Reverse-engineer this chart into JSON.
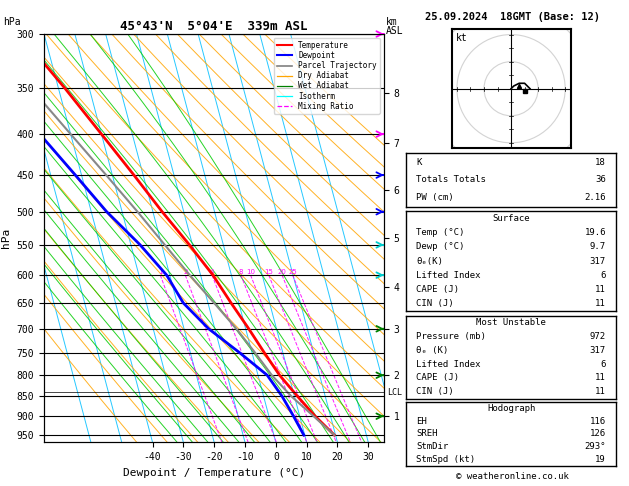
{
  "title_left": "45°43'N  5°04'E  339m ASL",
  "title_right": "25.09.2024  18GMT (Base: 12)",
  "xlabel": "Dewpoint / Temperature (°C)",
  "ylabel_left": "hPa",
  "pressure_ticks": [
    300,
    350,
    400,
    450,
    500,
    550,
    600,
    650,
    700,
    750,
    800,
    850,
    900,
    950
  ],
  "temp_ticks": [
    -40,
    -30,
    -20,
    -10,
    0,
    10,
    20,
    30
  ],
  "km_values": [
    1,
    2,
    3,
    4,
    5,
    6,
    7,
    8
  ],
  "km_pressures": [
    900,
    800,
    700,
    620,
    540,
    470,
    410,
    355
  ],
  "lcl_pressure": 840,
  "isotherm_color": "#00BFFF",
  "dry_adiabat_color": "#FFA500",
  "wet_adiabat_color": "#00CC00",
  "mixing_ratio_color": "#FF00FF",
  "temp_line_color": "#FF0000",
  "dewpoint_line_color": "#0000FF",
  "parcel_color": "#888888",
  "temperature_data": [
    [
      950,
      19.6
    ],
    [
      900,
      15.0
    ],
    [
      850,
      11.0
    ],
    [
      800,
      7.0
    ],
    [
      750,
      4.0
    ],
    [
      700,
      1.0
    ],
    [
      650,
      -2.5
    ],
    [
      600,
      -6.0
    ],
    [
      550,
      -11.0
    ],
    [
      500,
      -17.0
    ],
    [
      450,
      -23.0
    ],
    [
      400,
      -30.0
    ],
    [
      350,
      -38.0
    ],
    [
      300,
      -48.0
    ]
  ],
  "dewpoint_data": [
    [
      950,
      9.7
    ],
    [
      900,
      8.0
    ],
    [
      850,
      6.0
    ],
    [
      800,
      3.0
    ],
    [
      750,
      -4.0
    ],
    [
      700,
      -12.0
    ],
    [
      650,
      -18.0
    ],
    [
      600,
      -21.0
    ],
    [
      550,
      -27.0
    ],
    [
      500,
      -35.0
    ],
    [
      450,
      -42.0
    ],
    [
      400,
      -50.0
    ],
    [
      350,
      -55.0
    ],
    [
      300,
      -60.0
    ]
  ],
  "parcel_data": [
    [
      950,
      19.6
    ],
    [
      900,
      14.5
    ],
    [
      850,
      9.0
    ],
    [
      800,
      4.5
    ],
    [
      750,
      1.0
    ],
    [
      700,
      -3.0
    ],
    [
      650,
      -8.0
    ],
    [
      600,
      -13.5
    ],
    [
      550,
      -19.0
    ],
    [
      500,
      -25.0
    ],
    [
      450,
      -32.0
    ],
    [
      400,
      -40.0
    ],
    [
      350,
      -49.0
    ],
    [
      300,
      -59.0
    ]
  ],
  "stats": {
    "K": 18,
    "Totals_Totals": 36,
    "PW_cm": 2.16,
    "Surface_Temp": 19.6,
    "Surface_Dewp": 9.7,
    "Surface_theta_e": 317,
    "Surface_LI": 6,
    "Surface_CAPE": 11,
    "Surface_CIN": 11,
    "MU_Pressure": 972,
    "MU_theta_e": 317,
    "MU_LI": 6,
    "MU_CAPE": 11,
    "MU_CIN": 11,
    "Hodo_EH": 116,
    "Hodo_SREH": 126,
    "Hodo_StmDir": 293,
    "Hodo_StmSpd": 19
  }
}
